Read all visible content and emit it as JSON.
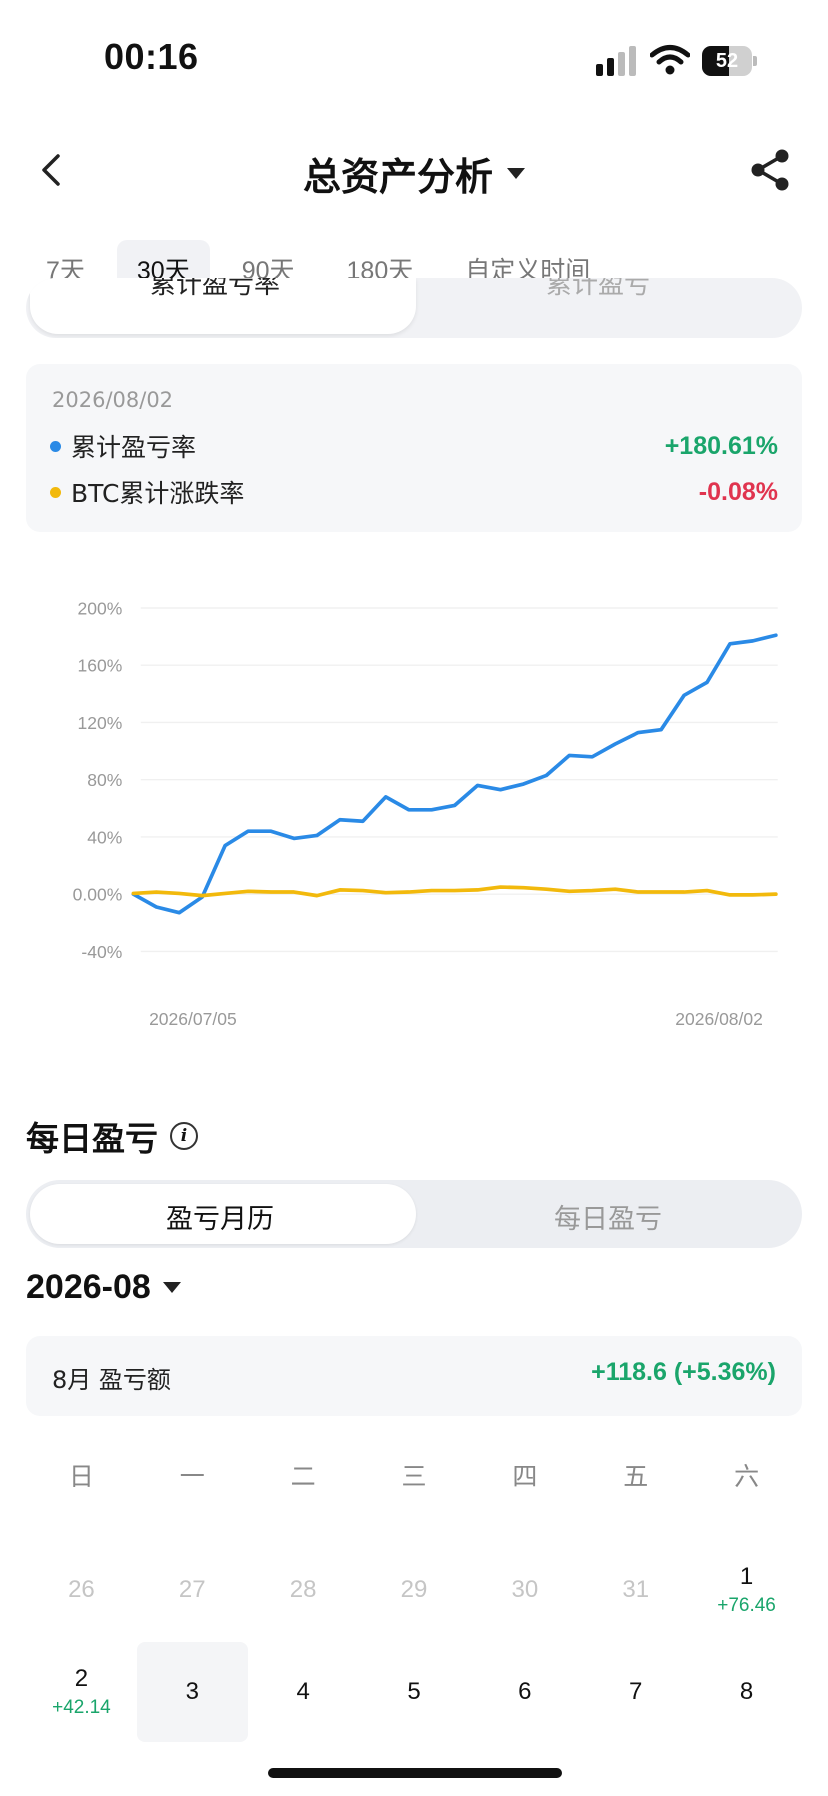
{
  "status_bar": {
    "time": "00:16",
    "battery": "52"
  },
  "nav": {
    "title": "总资产分析"
  },
  "range_tabs": [
    {
      "label": "7天",
      "active": false
    },
    {
      "label": "30天",
      "active": true
    },
    {
      "label": "90天",
      "active": false
    },
    {
      "label": "180天",
      "active": false
    },
    {
      "label": "自定义时间",
      "active": false
    }
  ],
  "view_toggle": {
    "left": "累计盈亏率",
    "right": "累计盈亏"
  },
  "info_card": {
    "date": "2026/08/02",
    "rows": [
      {
        "label": "累计盈亏率",
        "value": "+180.61%",
        "dot_color": "#2a8ae6",
        "value_color": "#1aa56b"
      },
      {
        "label": "BTC累计涨跌率",
        "value": "-0.08%",
        "dot_color": "#f2b90c",
        "value_color": "#e0344f"
      }
    ]
  },
  "chart_data": {
    "type": "line",
    "y_ticks": [
      "200%",
      "160%",
      "120%",
      "80%",
      "40%",
      "0.00%",
      "-40%"
    ],
    "ylim": [
      -40,
      200
    ],
    "x_labels": [
      "2026/07/05",
      "2026/08/02"
    ],
    "grid": true,
    "series": [
      {
        "name": "累计盈亏率",
        "color": "#2a8ae6",
        "values": [
          0,
          -9,
          -13,
          -2,
          34,
          44,
          44,
          39,
          41,
          52,
          51,
          68,
          59,
          59,
          62,
          76,
          73,
          77,
          83,
          97,
          96,
          105,
          113,
          115,
          139,
          148,
          175,
          177,
          181
        ]
      },
      {
        "name": "BTC累计涨跌率",
        "color": "#f2b90c",
        "values": [
          0.5,
          1.5,
          0.5,
          -1,
          0.5,
          2,
          1.5,
          1.5,
          -1,
          3,
          2.5,
          1,
          1.5,
          2.5,
          2.5,
          3,
          5,
          4.5,
          3.5,
          2,
          2.5,
          3.5,
          1.5,
          1.5,
          1.5,
          2.5,
          -0.5,
          -0.5,
          0
        ]
      }
    ]
  },
  "daily": {
    "title": "每日盈亏",
    "toggle": {
      "left": "盈亏月历",
      "right": "每日盈亏"
    },
    "month": "2026-08",
    "month_card": {
      "label": "8月 盈亏额",
      "value": "+118.6 (+5.36%)"
    },
    "weekdays": [
      "日",
      "一",
      "二",
      "三",
      "四",
      "五",
      "六"
    ],
    "days": [
      {
        "n": "26",
        "p": "",
        "muted": true
      },
      {
        "n": "27",
        "p": "",
        "muted": true
      },
      {
        "n": "28",
        "p": "",
        "muted": true
      },
      {
        "n": "29",
        "p": "",
        "muted": true
      },
      {
        "n": "30",
        "p": "",
        "muted": true
      },
      {
        "n": "31",
        "p": "",
        "muted": true
      },
      {
        "n": "1",
        "p": "+76.46",
        "muted": false
      },
      {
        "n": "2",
        "p": "+42.14",
        "muted": false
      },
      {
        "n": "3",
        "p": "",
        "muted": false,
        "selected": true
      },
      {
        "n": "4",
        "p": "",
        "muted": false
      },
      {
        "n": "5",
        "p": "",
        "muted": false
      },
      {
        "n": "6",
        "p": "",
        "muted": false
      },
      {
        "n": "7",
        "p": "",
        "muted": false
      },
      {
        "n": "8",
        "p": "",
        "muted": false
      }
    ]
  }
}
